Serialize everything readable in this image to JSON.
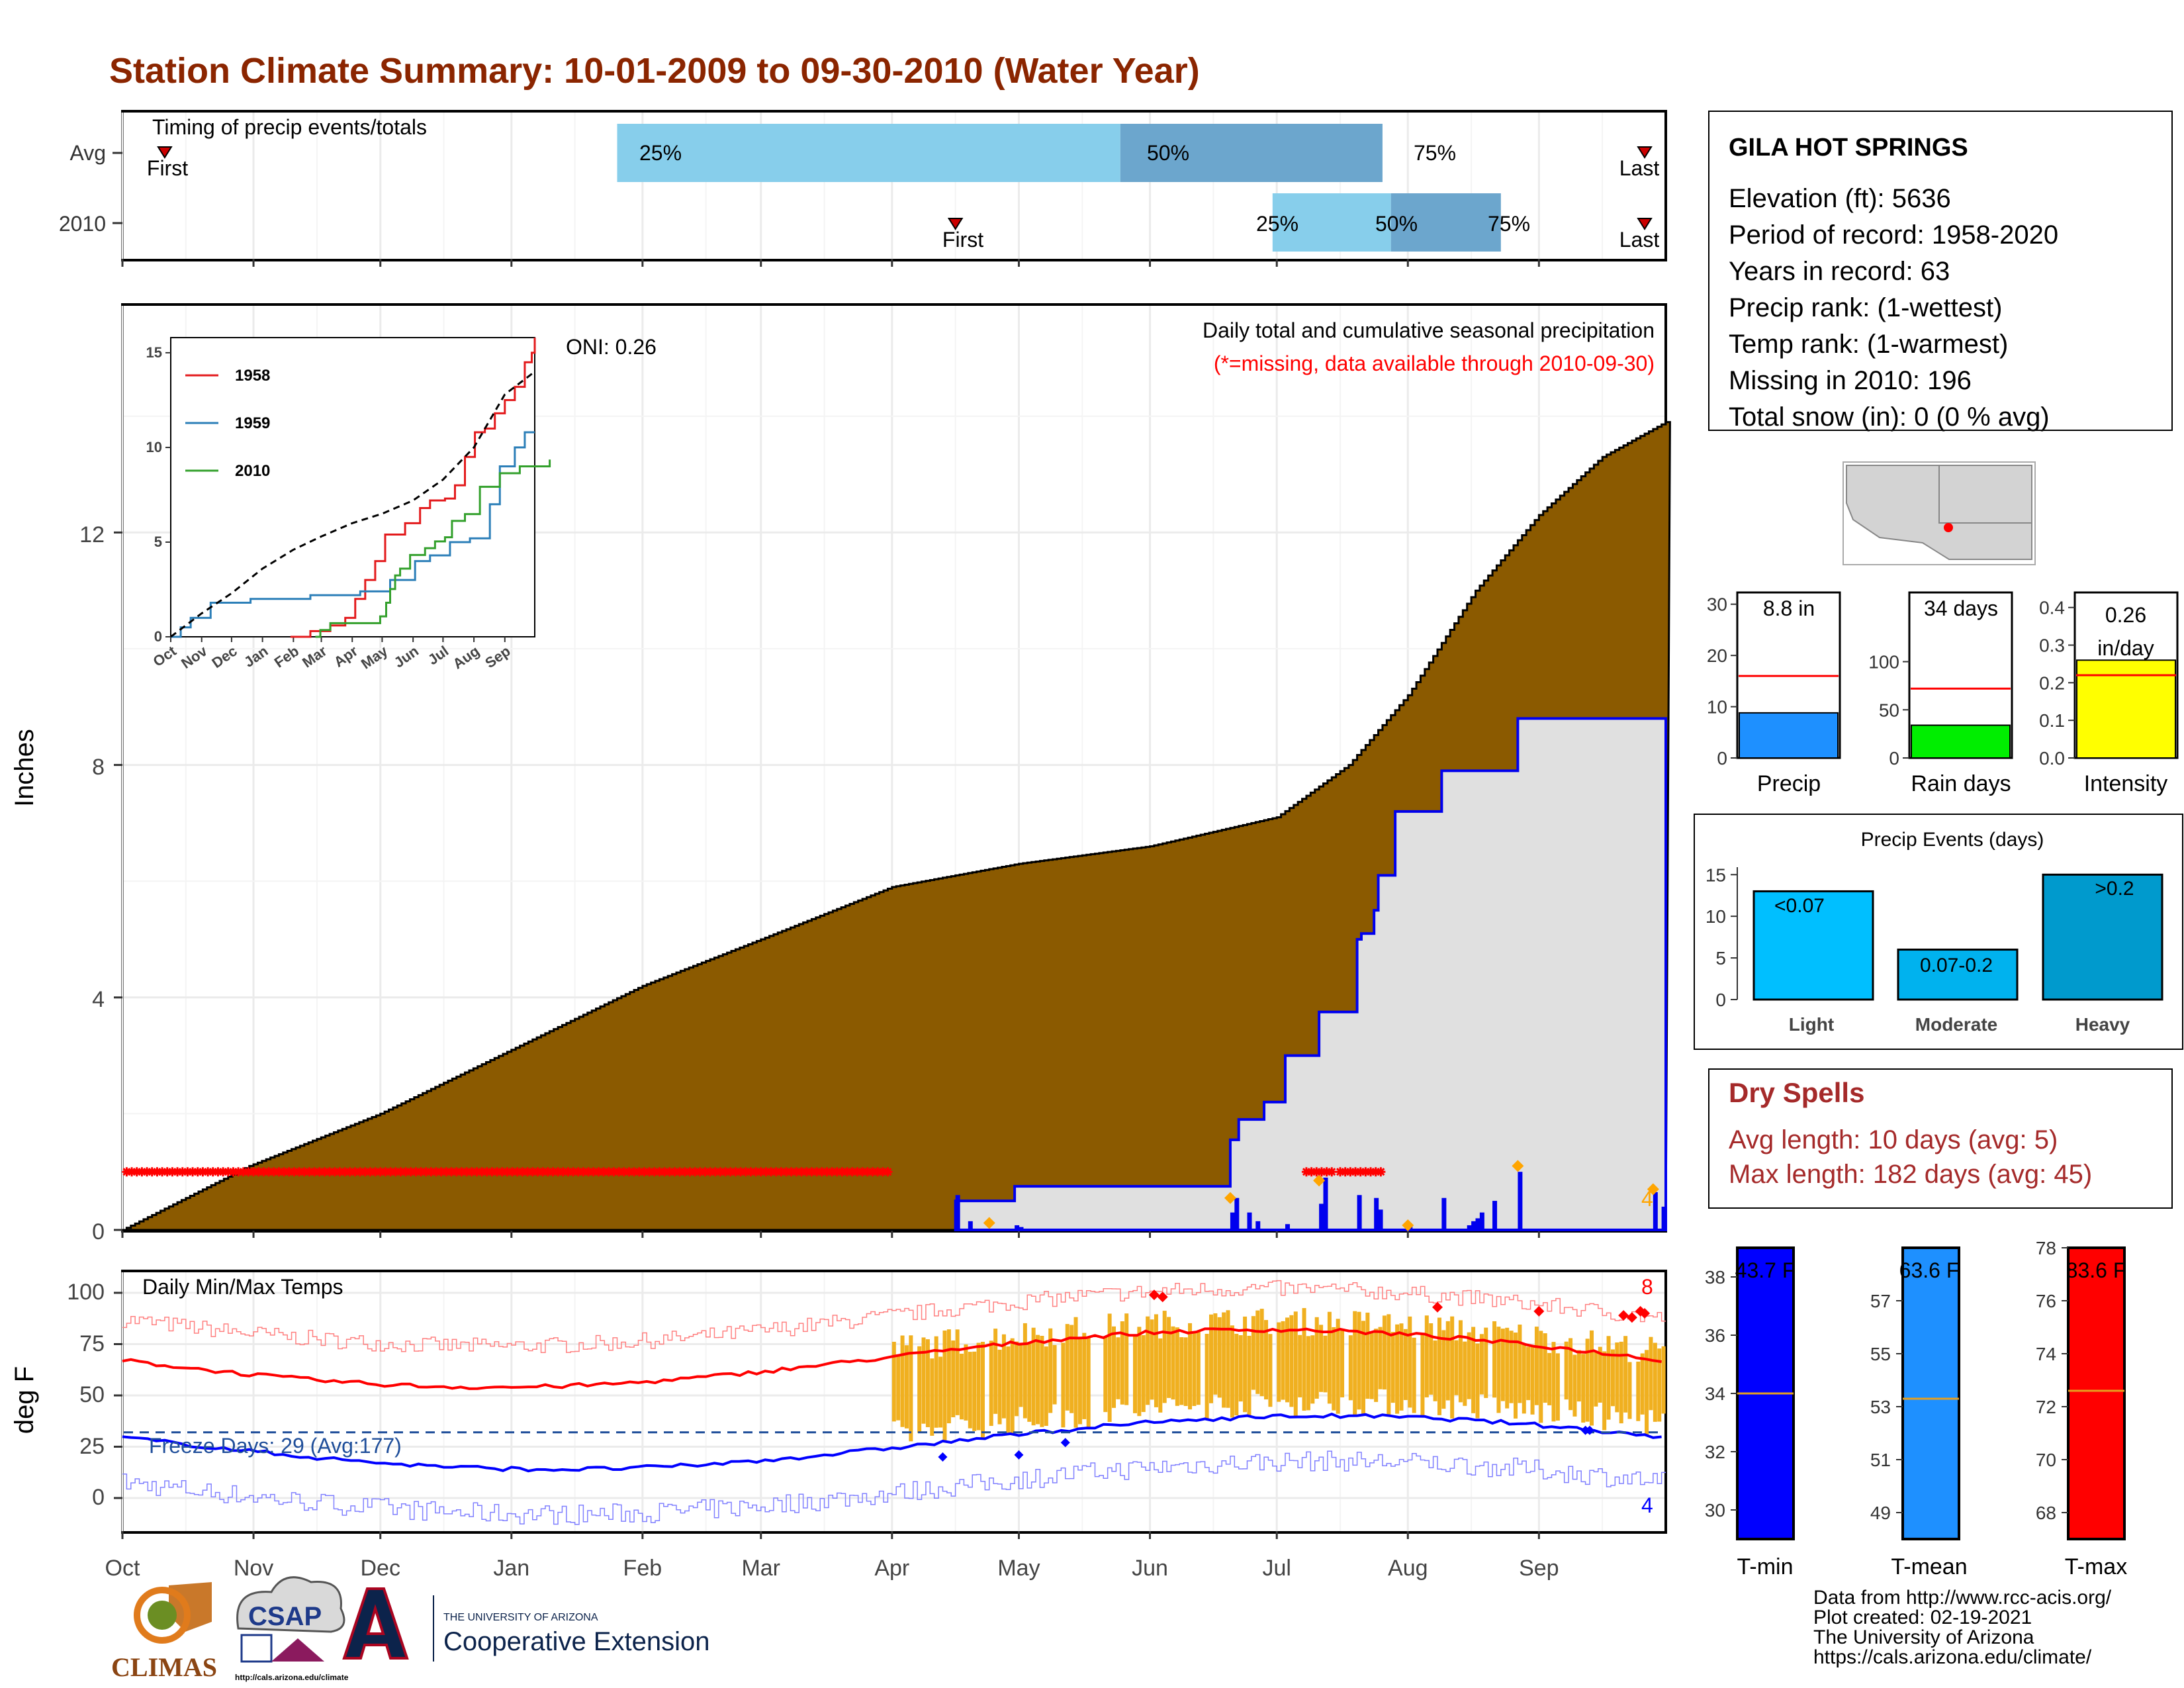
{
  "title": "Station Climate Summary: 10-01-2009 to 09-30-2010 (Water Year)",
  "timing": {
    "label": "Timing of precip events/totals",
    "rows": [
      {
        "name": "Avg",
        "first_label": "First",
        "last_label": "Last",
        "first_day": 10,
        "last_day": 360,
        "p25_day": 117,
        "p50_day": 236,
        "p75_day": 298,
        "p25_label": "25%",
        "p50_label": "50%",
        "p75_label": "75%"
      },
      {
        "name": "2010",
        "first_label": "First",
        "last_label": "Last",
        "first_day": 197,
        "last_day": 360,
        "p25_day": 272,
        "p50_day": 300,
        "p75_day": 326,
        "p25_label": "25%",
        "p50_label": "50%",
        "p75_label": "75%"
      }
    ]
  },
  "main": {
    "ylabel": "Inches",
    "caption": "Daily total and cumulative seasonal precipitation",
    "missing_note": "(*=missing, data available through 2010-09-30)",
    "oni": "ONI: 0.26",
    "count_label": "4",
    "yticks": [
      "0",
      "4",
      "8",
      "12"
    ]
  },
  "inset": {
    "series": [
      {
        "name": "1958",
        "color": "#e31a1c"
      },
      {
        "name": "1959",
        "color": "#2c7fb8"
      },
      {
        "name": "2010",
        "color": "#33a02c"
      }
    ],
    "yticks": [
      "0",
      "5",
      "10",
      "15"
    ],
    "xticks": [
      "Oct",
      "Nov",
      "Dec",
      "Jan",
      "Feb",
      "Mar",
      "Apr",
      "May",
      "Jun",
      "Jul",
      "Aug",
      "Sep"
    ]
  },
  "temp": {
    "ylabel": "deg F",
    "label": "Daily Min/Max Temps",
    "freeze": "Freeze Days: 29 (Avg:177)",
    "count_hi": "8",
    "count_lo": "4",
    "yticks": [
      "0",
      "25",
      "50",
      "75",
      "100"
    ]
  },
  "months": [
    "Oct",
    "Nov",
    "Dec",
    "Jan",
    "Feb",
    "Mar",
    "Apr",
    "May",
    "Jun",
    "Jul",
    "Aug",
    "Sep"
  ],
  "station": {
    "name": "GILA HOT SPRINGS",
    "lines": [
      "Elevation (ft): 5636",
      "Period of record: 1958-2020",
      "Years in record: 63",
      "Precip rank:  (1-wettest)",
      "Temp rank:  (1-warmest)",
      "Missing in 2010: 196",
      "Total snow (in): 0 (0 % avg)"
    ]
  },
  "small_bars": [
    {
      "name": "Precip",
      "label": "8.8 in",
      "value": 8.8,
      "avg": 16.0,
      "max": 30,
      "ticks": [
        "0",
        "10",
        "20",
        "30"
      ],
      "color": "#1e90ff"
    },
    {
      "name": "Rain days",
      "label": "34 days",
      "value": 34,
      "avg": 72,
      "max": 140,
      "ticks": [
        "0",
        "50",
        "100"
      ],
      "color": "#00ee00"
    },
    {
      "name": "Intensity",
      "label": "0.26",
      "label2": "in/day",
      "value": 0.26,
      "avg": 0.22,
      "max": 0.44,
      "ticks": [
        "0.0",
        "0.1",
        "0.2",
        "0.3",
        "0.4"
      ],
      "color": "#ffff00"
    }
  ],
  "events": {
    "title": "Precip Events (days)",
    "ticks": [
      "0",
      "5",
      "10",
      "15"
    ],
    "bars": [
      {
        "name": "Light",
        "label": "<0.07",
        "value": 13,
        "color": "#00bfff"
      },
      {
        "name": "Moderate",
        "label": "0.07-0.2",
        "value": 6,
        "color": "#00b2ee"
      },
      {
        "name": "Heavy",
        "label": ">0.2",
        "value": 15,
        "color": "#009acd"
      }
    ]
  },
  "dry": {
    "title": "Dry Spells",
    "avg": "Avg length: 10 days (avg: 5)",
    "max": "Max length: 182 days (avg: 45)"
  },
  "temp_bars": [
    {
      "name": "T-min",
      "label": "43.7 F",
      "value": 43.7,
      "avg": 34.0,
      "ymin": 29,
      "ymax": 39,
      "ticks": [
        "30",
        "32",
        "34",
        "36",
        "38"
      ],
      "color": "#0000ff"
    },
    {
      "name": "T-mean",
      "label": "63.6 F",
      "value": 63.6,
      "avg": 53.3,
      "ymin": 48,
      "ymax": 59,
      "ticks": [
        "49",
        "51",
        "53",
        "55",
        "57"
      ],
      "tickvals": [
        49,
        51,
        53,
        55,
        57
      ],
      "color": "#1e90ff"
    },
    {
      "name": "T-max",
      "label": "83.6 F",
      "value": 83.6,
      "avg": 72.6,
      "ymin": 67,
      "ymax": 78,
      "ticks": [
        "68",
        "70",
        "72",
        "74",
        "76",
        "78"
      ],
      "color": "#ff0000"
    }
  ],
  "footer": [
    "Data from http://www.rcc-acis.org/",
    "Plot created: 02-19-2021",
    "The University of Arizona",
    "https://cals.arizona.edu/climate/"
  ],
  "logos": {
    "climas": "CLIMAS",
    "csap": "CSAP",
    "csap_url": "http://cals.arizona.edu/climate",
    "ua_small": "THE UNIVERSITY OF ARIZONA",
    "ua_big": "Cooperative Extension"
  }
}
